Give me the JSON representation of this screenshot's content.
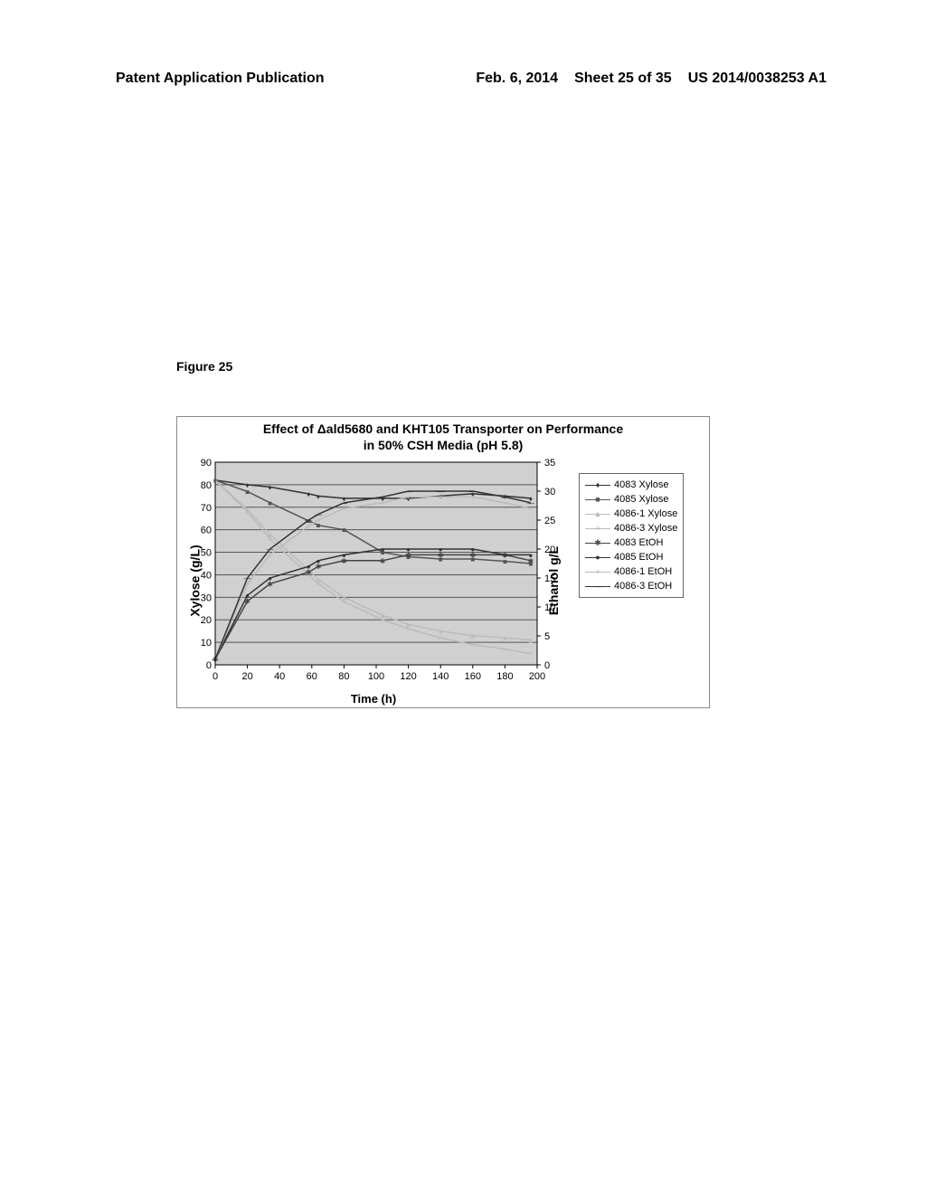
{
  "header": {
    "left": "Patent Application Publication",
    "date": "Feb. 6, 2014",
    "sheet": "Sheet 25 of 35",
    "pubno": "US 2014/0038253 A1"
  },
  "figure_label": "Figure 25",
  "chart": {
    "title_line1": "Effect of Δald5680 and KHT105 Transporter on Performance",
    "title_line2": "in 50% CSH Media (pH 5.8)",
    "xlabel": "Time (h)",
    "ylabel_left": "Xylose (g/L)",
    "ylabel_right": "Ethanol g/L",
    "xlim": [
      0,
      200
    ],
    "ylim_left": [
      0,
      90
    ],
    "ylim_right": [
      0,
      35
    ],
    "xtick_step": 20,
    "ytick_left_step": 10,
    "ytick_right_step": 5,
    "plot_bg": "#d0d0d0",
    "grid_color": "#555555",
    "series": [
      {
        "name": "4083 Xylose",
        "axis": "left",
        "marker": "♦",
        "color": "#333333",
        "data": [
          [
            0,
            82
          ],
          [
            20,
            80
          ],
          [
            34,
            79
          ],
          [
            58,
            76
          ],
          [
            64,
            75
          ],
          [
            80,
            74
          ],
          [
            104,
            74
          ],
          [
            120,
            74
          ],
          [
            140,
            75
          ],
          [
            160,
            76
          ],
          [
            180,
            75
          ],
          [
            196,
            74
          ]
        ]
      },
      {
        "name": "4085 Xylose",
        "axis": "left",
        "marker": "■",
        "color": "#555555",
        "data": [
          [
            0,
            82
          ],
          [
            20,
            77
          ],
          [
            34,
            72
          ],
          [
            58,
            64
          ],
          [
            64,
            62
          ],
          [
            80,
            60
          ],
          [
            104,
            50
          ],
          [
            120,
            48
          ],
          [
            140,
            47
          ],
          [
            160,
            47
          ],
          [
            180,
            46
          ],
          [
            196,
            45
          ]
        ]
      },
      {
        "name": "4086-1 Xylose",
        "axis": "left",
        "marker": "▲",
        "color": "#bbbbbb",
        "data": [
          [
            0,
            82
          ],
          [
            20,
            69
          ],
          [
            34,
            58
          ],
          [
            58,
            42
          ],
          [
            64,
            38
          ],
          [
            80,
            30
          ],
          [
            104,
            22
          ],
          [
            120,
            18
          ],
          [
            140,
            15
          ],
          [
            160,
            13
          ],
          [
            180,
            12
          ],
          [
            196,
            11
          ]
        ]
      },
      {
        "name": "4086-3 Xylose",
        "axis": "left",
        "marker": "×",
        "color": "#bbbbbb",
        "data": [
          [
            0,
            82
          ],
          [
            20,
            68
          ],
          [
            34,
            56
          ],
          [
            58,
            40
          ],
          [
            64,
            36
          ],
          [
            80,
            28
          ],
          [
            104,
            20
          ],
          [
            120,
            16
          ],
          [
            140,
            12
          ],
          [
            160,
            9
          ],
          [
            180,
            7
          ],
          [
            196,
            5
          ]
        ]
      },
      {
        "name": "4083 EtOH",
        "axis": "right",
        "marker": "✱",
        "color": "#444444",
        "data": [
          [
            0,
            1
          ],
          [
            20,
            11
          ],
          [
            34,
            14
          ],
          [
            58,
            16
          ],
          [
            64,
            17
          ],
          [
            80,
            18
          ],
          [
            104,
            18
          ],
          [
            120,
            19
          ],
          [
            140,
            19
          ],
          [
            160,
            19
          ],
          [
            180,
            19
          ],
          [
            196,
            18
          ]
        ]
      },
      {
        "name": "4085 EtOH",
        "axis": "right",
        "marker": "●",
        "color": "#333333",
        "data": [
          [
            0,
            1
          ],
          [
            20,
            12
          ],
          [
            34,
            15
          ],
          [
            58,
            17
          ],
          [
            64,
            18
          ],
          [
            80,
            19
          ],
          [
            104,
            20
          ],
          [
            120,
            20
          ],
          [
            140,
            20
          ],
          [
            160,
            20
          ],
          [
            180,
            19
          ],
          [
            196,
            19
          ]
        ]
      },
      {
        "name": "4086-1 EtOH",
        "axis": "right",
        "marker": "+",
        "color": "#bbbbbb",
        "data": [
          [
            0,
            1
          ],
          [
            20,
            14
          ],
          [
            34,
            19
          ],
          [
            58,
            24
          ],
          [
            64,
            25
          ],
          [
            80,
            27
          ],
          [
            104,
            28
          ],
          [
            120,
            29
          ],
          [
            140,
            29
          ],
          [
            160,
            29
          ],
          [
            180,
            28
          ],
          [
            196,
            27
          ]
        ]
      },
      {
        "name": "4086-3 EtOH",
        "axis": "right",
        "marker": "—",
        "color": "#333333",
        "data": [
          [
            0,
            1
          ],
          [
            20,
            15
          ],
          [
            34,
            20
          ],
          [
            58,
            25
          ],
          [
            64,
            26
          ],
          [
            80,
            28
          ],
          [
            104,
            29
          ],
          [
            120,
            30
          ],
          [
            140,
            30
          ],
          [
            160,
            30
          ],
          [
            180,
            29
          ],
          [
            196,
            28
          ]
        ]
      }
    ]
  }
}
